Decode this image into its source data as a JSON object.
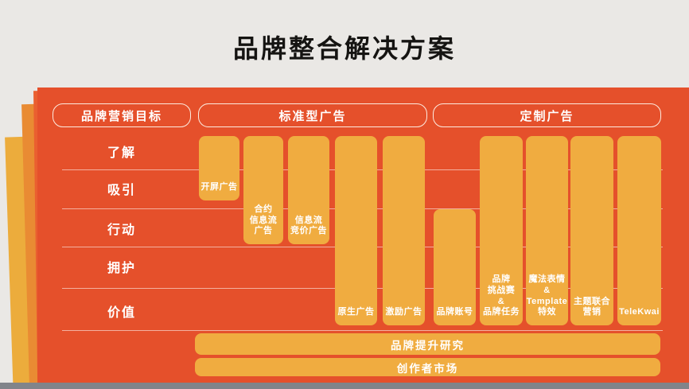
{
  "slide": {
    "title": "品牌整合解决方案"
  },
  "colors": {
    "background": "#EAE8E5",
    "panel_orange": "#E5502B",
    "bar_amber": "#F0AC40",
    "sheet_orange": "#E98B33",
    "sheet_yellow": "#ECAC3C",
    "bottom_strip_gray": "#81848A",
    "title_text": "#151412",
    "label_text": "#FFFFFF"
  },
  "matrix": {
    "headers": {
      "goal": "品牌营销目标",
      "standard": "标准型广告",
      "custom": "定制广告"
    },
    "stages": [
      "了解",
      "吸引",
      "行动",
      "拥护",
      "价值"
    ],
    "products": [
      {
        "name": "开屏广告",
        "label": "开屏广告",
        "group": "标准型广告",
        "stage_span": "了解–吸引"
      },
      {
        "name": "合约信息流广告",
        "label": "合约\n信息流\n广告",
        "group": "标准型广告",
        "stage_span": "了解–行动"
      },
      {
        "name": "信息流竞价广告",
        "label": "信息流\n竞价广告",
        "group": "标准型广告",
        "stage_span": "了解–行动"
      },
      {
        "name": "原生广告",
        "label": "原生广告",
        "group": "标准型广告",
        "stage_span": "了解–价值"
      },
      {
        "name": "激励广告",
        "label": "激励广告",
        "group": "标准型广告",
        "stage_span": "了解–价值"
      },
      {
        "name": "品牌账号",
        "label": "品牌账号",
        "group": "定制广告",
        "stage_span": "行动–价值"
      },
      {
        "name": "品牌挑战赛&品牌任务",
        "label": "品牌\n挑战赛\n&\n品牌任务",
        "group": "定制广告",
        "stage_span": "了解–价值"
      },
      {
        "name": "魔法表情&Template特效",
        "label": "魔法表情\n&\nTemplate\n特效",
        "group": "定制广告",
        "stage_span": "了解–价值"
      },
      {
        "name": "主题联合营销",
        "label": "主题联合\n营销",
        "group": "定制广告",
        "stage_span": "了解–价值"
      },
      {
        "name": "TeleKwai",
        "label": "TeleKwai",
        "group": "定制广告",
        "stage_span": "了解–价值"
      }
    ],
    "footer_bars": [
      "品牌提升研究",
      "创作者市场"
    ]
  }
}
